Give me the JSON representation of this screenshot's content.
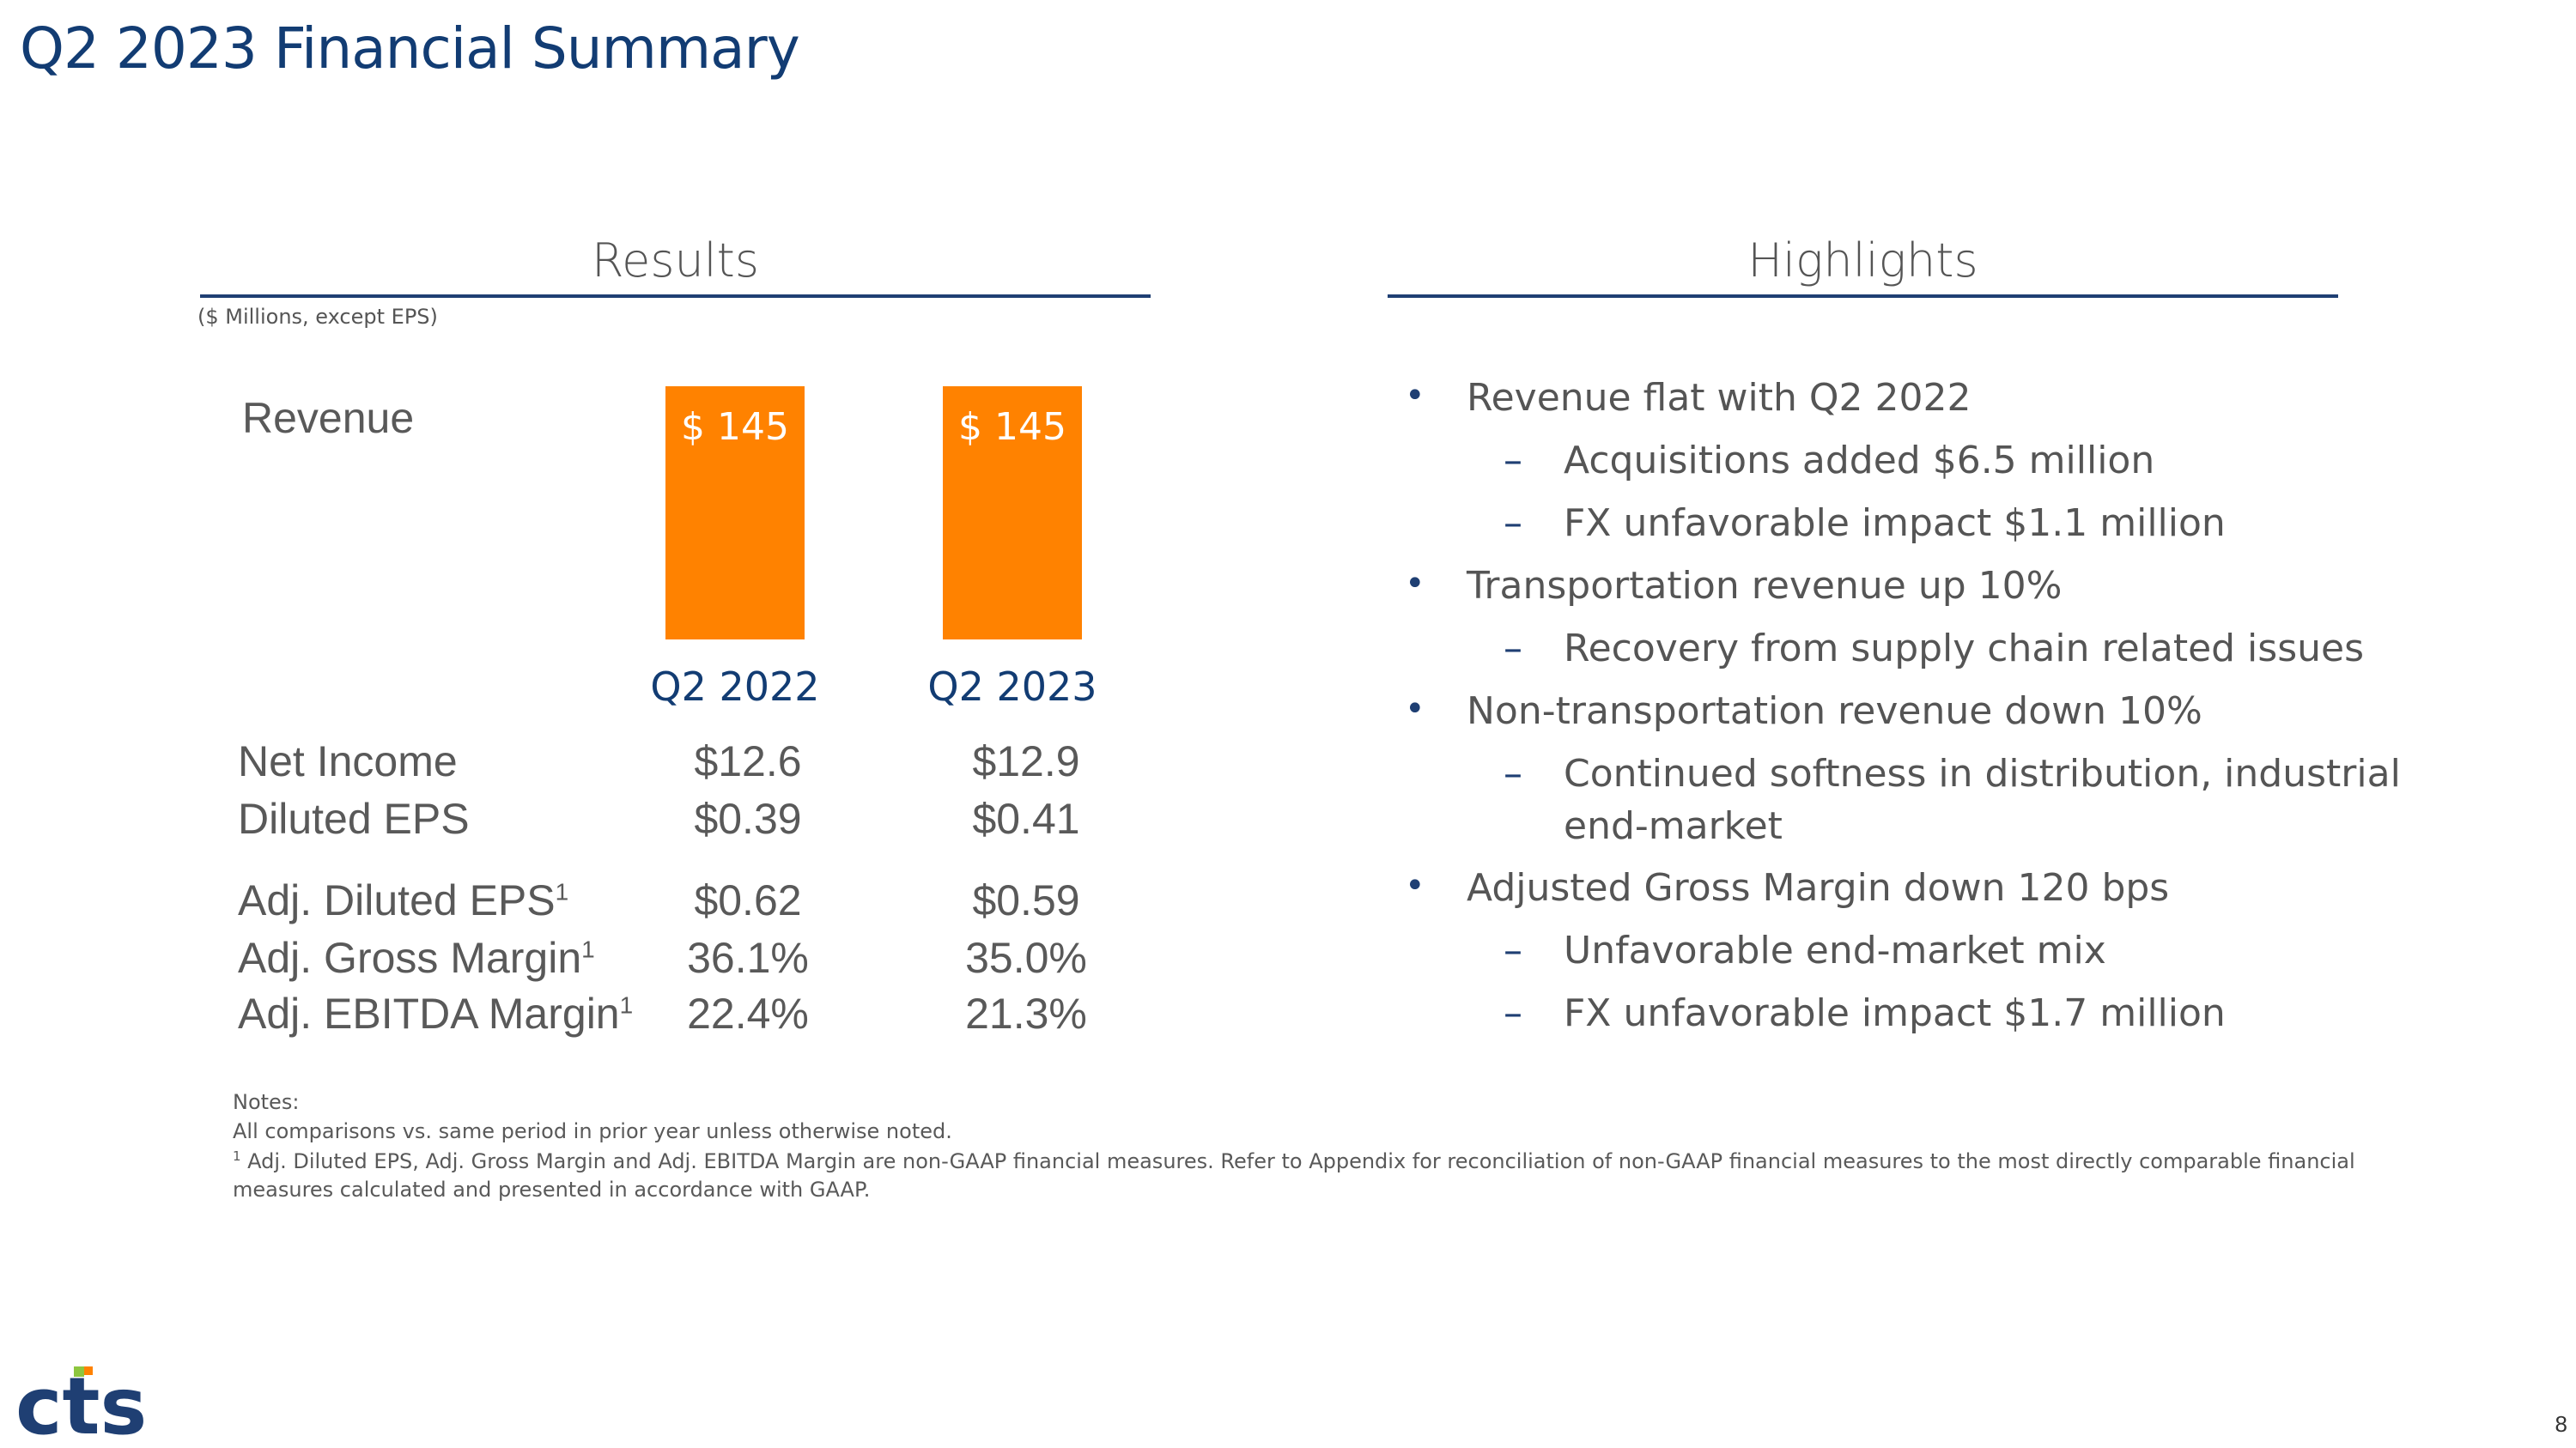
{
  "title": "Q2 2023 Financial Summary",
  "results": {
    "header": "Results",
    "units_note": "($ Millions, except EPS)",
    "revenue_label": "Revenue",
    "metrics": [
      {
        "label": "Net Income",
        "sup": "",
        "q2_2022": "$12.6",
        "q2_2023": "$12.9"
      },
      {
        "label": "Diluted EPS",
        "sup": "",
        "q2_2022": "$0.39",
        "q2_2023": "$0.41"
      },
      {
        "label": "Adj. Diluted EPS",
        "sup": "1",
        "q2_2022": "$0.62",
        "q2_2023": "$0.59"
      },
      {
        "label": "Adj. Gross Margin",
        "sup": "1",
        "q2_2022": "36.1%",
        "q2_2023": "35.0%"
      },
      {
        "label": "Adj. EBITDA Margin",
        "sup": "1",
        "q2_2022": "22.4%",
        "q2_2023": "21.3%"
      }
    ]
  },
  "chart_data": {
    "type": "bar",
    "categories": [
      "Q2 2022",
      "Q2 2023"
    ],
    "values": [
      145,
      145
    ],
    "data_labels": [
      "$ 145",
      "$ 145"
    ],
    "bar_color": "#ff8200",
    "title": "Revenue"
  },
  "highlights": {
    "header": "Highlights",
    "items": [
      {
        "level": 1,
        "text": "Revenue flat with Q2 2022"
      },
      {
        "level": 2,
        "text": "Acquisitions added $6.5 million"
      },
      {
        "level": 2,
        "text": "FX unfavorable impact $1.1 million"
      },
      {
        "level": 1,
        "text": "Transportation revenue up 10%"
      },
      {
        "level": 2,
        "text": "Recovery from supply chain related issues"
      },
      {
        "level": 1,
        "text": "Non-transportation revenue down 10%"
      },
      {
        "level": 2,
        "text": "Continued softness in distribution, industrial"
      },
      {
        "level": 3,
        "text": "end-market"
      },
      {
        "level": 1,
        "text": "Adjusted Gross Margin down 120 bps"
      },
      {
        "level": 2,
        "text": "Unfavorable end-market mix"
      },
      {
        "level": 2,
        "text": "FX unfavorable impact $1.7 million"
      }
    ]
  },
  "notes": {
    "heading": "Notes:",
    "line1": "All comparisons vs. same period in prior year unless otherwise noted.",
    "footnote_marker": "1",
    "line2": " Adj. Diluted EPS, Adj. Gross Margin and Adj. EBITDA Margin are non-GAAP financial measures. Refer to Appendix for reconciliation of non-GAAP financial measures to the most directly comparable financial",
    "line3": "measures calculated and presented in accordance with GAAP."
  },
  "logo": {
    "text": "cts",
    "color_main": "#1f3f73",
    "color_accent": "#8dc63f",
    "color_accent2": "#ff8200"
  },
  "page_number": "8",
  "colors": {
    "title": "#123c73",
    "bar": "#ff8200",
    "rule": "#1f3f73"
  }
}
